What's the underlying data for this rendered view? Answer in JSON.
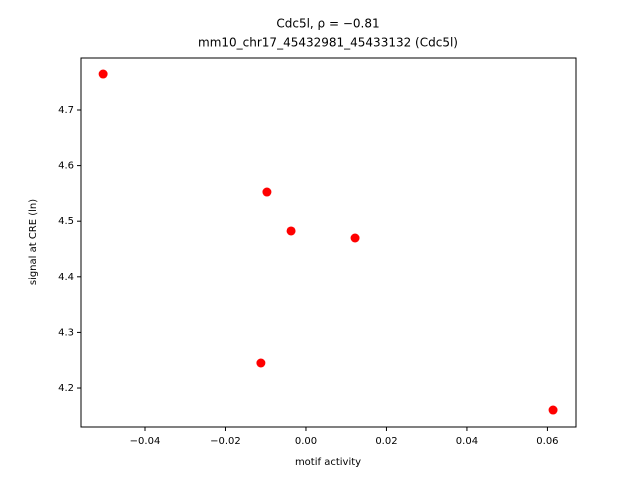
{
  "chart_data": {
    "type": "scatter",
    "title": [
      "Cdc5l, ρ = −0.81",
      "mm10_chr17_45432981_45433132 (Cdc5l)"
    ],
    "x_label": "motif activity",
    "y_label": "signal at CRE (ln)",
    "series": [
      {
        "color": "#ff0000",
        "x": [
          -0.0504,
          -0.0097,
          -0.0037,
          0.0122,
          -0.0112,
          0.0614
        ],
        "values": [
          4.7647,
          4.5525,
          4.4824,
          4.4698,
          4.245,
          4.1604
        ]
      }
    ],
    "xlim": [
      -0.0559,
      0.0671
    ],
    "ylim": [
      4.1299,
      4.7935
    ],
    "xticks": [
      {
        "value": -0.04,
        "label": "−0.04"
      },
      {
        "value": -0.02,
        "label": "−0.02"
      },
      {
        "value": 0,
        "label": "0.00"
      },
      0.02,
      0.04,
      0.06
    ],
    "yticks": [
      4.2,
      4.3,
      4.4,
      4.5,
      4.6,
      4.7
    ]
  }
}
